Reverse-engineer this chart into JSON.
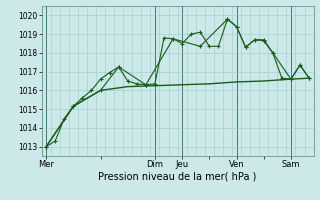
{
  "xlabel": "Pression niveau de la mer( hPa )",
  "bg_color": "#cce8e8",
  "grid_color": "#99cccc",
  "line_color": "#1a5c1a",
  "ylim": [
    1012.5,
    1020.5
  ],
  "yticks": [
    1013,
    1014,
    1015,
    1016,
    1017,
    1018,
    1019,
    1020
  ],
  "day_labels": [
    "Mer",
    "",
    "Dim",
    "Jeu",
    "",
    "Ven",
    "",
    "Sam"
  ],
  "day_positions": [
    0,
    6,
    12,
    15,
    18,
    21,
    24,
    27
  ],
  "vline_positions": [
    0,
    12,
    15,
    21,
    27
  ],
  "xlim": [
    -0.5,
    29.5
  ],
  "series1_x": [
    0,
    1,
    2,
    3,
    4,
    5,
    6,
    7,
    8,
    9,
    10,
    11,
    12,
    13,
    14,
    15,
    16,
    17,
    18,
    19,
    20,
    21,
    22,
    23,
    24,
    25,
    26,
    27,
    28,
    29
  ],
  "series1_y": [
    1013.0,
    1013.3,
    1014.5,
    1015.15,
    1015.6,
    1016.0,
    1016.6,
    1016.95,
    1017.25,
    1016.5,
    1016.35,
    1016.3,
    1016.35,
    1018.8,
    1018.75,
    1018.5,
    1019.0,
    1019.1,
    1018.35,
    1018.35,
    1019.8,
    1019.4,
    1018.3,
    1018.7,
    1018.7,
    1018.0,
    1016.65,
    1016.6,
    1017.35,
    1016.65
  ],
  "series2_x": [
    0,
    3,
    6,
    9,
    12,
    15,
    18,
    21,
    24,
    27,
    29
  ],
  "series2_y": [
    1013.0,
    1015.15,
    1016.0,
    1016.2,
    1016.25,
    1016.3,
    1016.35,
    1016.45,
    1016.5,
    1016.6,
    1016.65
  ],
  "series3_x": [
    0,
    3,
    6,
    8,
    11,
    14,
    17,
    20,
    21,
    22,
    23,
    24,
    25,
    27,
    28,
    29
  ],
  "series3_y": [
    1013.0,
    1015.15,
    1016.0,
    1017.25,
    1016.3,
    1018.75,
    1018.35,
    1019.8,
    1019.4,
    1018.3,
    1018.7,
    1018.65,
    1018.0,
    1016.6,
    1017.35,
    1016.65
  ]
}
